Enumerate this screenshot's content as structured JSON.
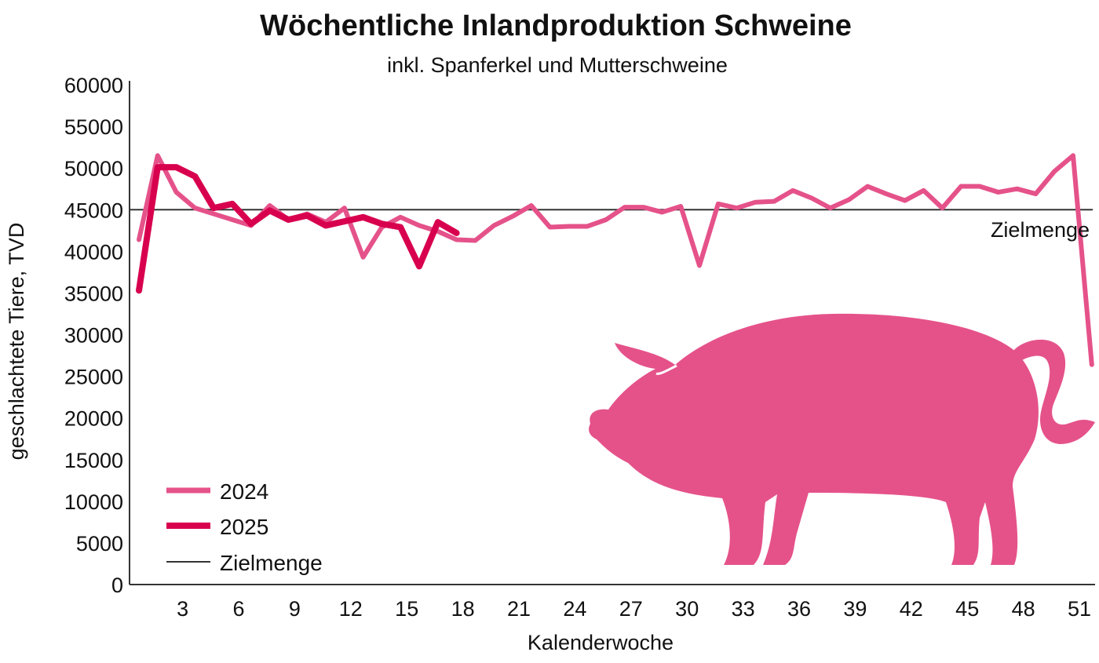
{
  "chart_data": {
    "type": "line",
    "title": "Wöchentliche Inlandproduktion Schweine",
    "subtitle": "inkl. Spanferkel und Mutterschweine",
    "xlabel": "Kalenderwoche",
    "ylabel": "geschlachtete Tiere, TVD",
    "ylim": [
      0,
      60000
    ],
    "yticks": [
      0,
      5000,
      10000,
      15000,
      20000,
      25000,
      30000,
      35000,
      40000,
      45000,
      50000,
      55000,
      60000
    ],
    "xticks": [
      3,
      6,
      9,
      12,
      15,
      18,
      21,
      24,
      27,
      30,
      33,
      36,
      39,
      42,
      45,
      48,
      51
    ],
    "grid": false,
    "legend_position": "bottom-left",
    "reference_line": {
      "name": "Zielmenge",
      "value": 45000,
      "label": "Zielmenge",
      "color": "#333333"
    },
    "series": [
      {
        "name": "2024",
        "color": "#e5528a",
        "x": [
          1,
          2,
          3,
          4,
          5,
          6,
          7,
          8,
          9,
          10,
          11,
          12,
          13,
          14,
          15,
          16,
          17,
          18,
          19,
          20,
          21,
          22,
          23,
          24,
          25,
          26,
          27,
          28,
          29,
          30,
          31,
          32,
          33,
          34,
          35,
          36,
          37,
          38,
          39,
          40,
          41,
          42,
          43,
          44,
          45,
          46,
          47,
          48,
          49,
          50,
          51,
          52
        ],
        "values": [
          41400,
          51500,
          47100,
          45200,
          44500,
          43800,
          43100,
          45500,
          43800,
          44500,
          43500,
          45200,
          39300,
          42900,
          44100,
          43100,
          42400,
          41400,
          41300,
          43100,
          44200,
          45500,
          42900,
          43000,
          43000,
          43800,
          45300,
          45300,
          44700,
          45400,
          38300,
          45700,
          45200,
          45900,
          46000,
          47300,
          46400,
          45200,
          46200,
          47800,
          46900,
          46100,
          47300,
          45200,
          47800,
          47800,
          47100,
          47500,
          46900,
          49600,
          51500,
          26400
        ]
      },
      {
        "name": "2025",
        "color": "#d8004e",
        "x": [
          1,
          2,
          3,
          4,
          5,
          6,
          7,
          8,
          9,
          10,
          11,
          12,
          13,
          14,
          15,
          16,
          17,
          18
        ],
        "values": [
          35300,
          50100,
          50100,
          49000,
          45200,
          45700,
          43300,
          44900,
          43800,
          44300,
          43100,
          43600,
          44100,
          43300,
          42900,
          38200,
          43500,
          42200
        ]
      }
    ]
  },
  "illustration": {
    "name": "pig-silhouette",
    "color": "#e5528a"
  }
}
